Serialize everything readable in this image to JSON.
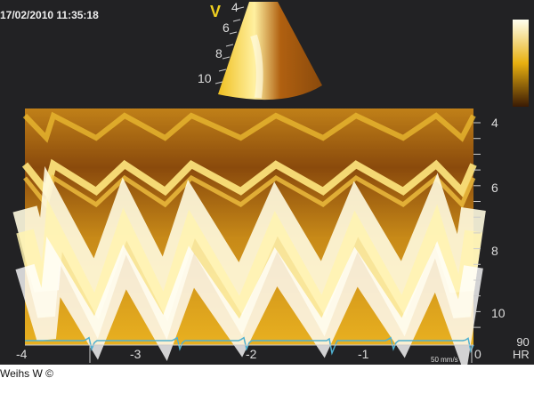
{
  "header": {
    "timestamp": "17/02/2010 11:35:18",
    "view_marker": "V"
  },
  "sector": {
    "depth_labels": [
      "4",
      "6",
      "8",
      "10"
    ]
  },
  "mmode": {
    "depth_labels": [
      "4",
      "6",
      "8",
      "10"
    ],
    "time_labels": [
      "-4",
      "-3",
      "-2",
      "-1",
      "0"
    ],
    "sweep_speed": "50 mm/s"
  },
  "heart_rate": {
    "value": "90",
    "label": "HR"
  },
  "credit": "Weihs W ©",
  "colors": {
    "background": "#222224",
    "echo_bright": "#fff8c0",
    "echo_mid": "#e0a800",
    "echo_dark": "#7a3f08",
    "ecg_trace": "#4fb0d0"
  }
}
